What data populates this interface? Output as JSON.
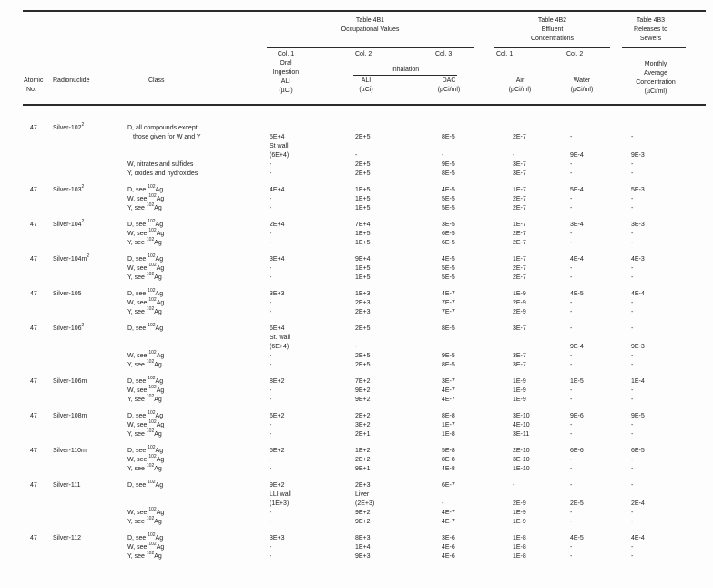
{
  "header": {
    "atomic_no": [
      "Atomic",
      "No."
    ],
    "radionuclide": "Radionuclide",
    "class_label": "Class",
    "t4b1": {
      "title": [
        "Table 4B1",
        "Occupational Values"
      ],
      "col1": [
        "Col. 1",
        "Oral",
        "Ingestion",
        "ALI",
        "(µCi)"
      ],
      "col2": "Col. 2",
      "col3": "Col. 3",
      "inhalation": "Inhalation",
      "ali": [
        "ALI",
        "(µCi)"
      ],
      "dac": [
        "DAC",
        "(µCi/ml)"
      ]
    },
    "t4b2": {
      "title": [
        "Table 4B2",
        "Effluent",
        "Concentrations"
      ],
      "col1": "Col. 1",
      "col2": "Col. 2",
      "air": [
        "Air",
        "(µCi/ml)"
      ],
      "water": [
        "Water",
        "(µCi/ml)"
      ]
    },
    "t4b3": {
      "title": [
        "Table 4B3",
        "Releases to",
        "Sewers"
      ],
      "sub": [
        "Monthly",
        "Average",
        "Concentration",
        "(µCi/ml)"
      ]
    }
  },
  "nuclides": [
    {
      "atomic_no": "47",
      "name": "Silver-102",
      "footnote": "2",
      "rows": [
        {
          "class": "D, all compounds except"
        },
        {
          "class": "those given for W and Y",
          "indent": true,
          "oral": "5E+4",
          "inh": "2E+5",
          "dac": "8E-5",
          "air": "2E-7",
          "water": "-",
          "sewer": "-"
        },
        {
          "oral": "St wall"
        },
        {
          "oral": "(6E+4)",
          "inh": "-",
          "dac": "-",
          "air": "-",
          "water": "9E-4",
          "sewer": "9E-3"
        },
        {
          "class": "W, nitrates and sulfides",
          "oral": "-",
          "inh": "2E+5",
          "dac": "9E-5",
          "air": "3E-7",
          "water": "-",
          "sewer": "-"
        },
        {
          "class": "Y, oxides and hydroxides",
          "oral": "-",
          "inh": "2E+5",
          "dac": "8E-5",
          "air": "3E-7",
          "water": "-",
          "sewer": "-"
        }
      ]
    },
    {
      "atomic_no": "47",
      "name": "Silver-103",
      "footnote": "2",
      "rows": [
        {
          "class": "D, see ^102^Ag",
          "oral": "4E+4",
          "inh": "1E+5",
          "dac": "4E-5",
          "air": "1E-7",
          "water": "5E-4",
          "sewer": "5E-3"
        },
        {
          "class": "W, see ^102^Ag",
          "oral": "-",
          "inh": "1E+5",
          "dac": "5E-5",
          "air": "2E-7",
          "water": "-",
          "sewer": "-"
        },
        {
          "class": "Y, see ^102^Ag",
          "oral": "-",
          "inh": "1E+5",
          "dac": "5E-5",
          "air": "2E-7",
          "water": "-",
          "sewer": "-"
        }
      ]
    },
    {
      "atomic_no": "47",
      "name": "Silver-104",
      "footnote": "2",
      "rows": [
        {
          "class": "D, see ^102^Ag",
          "oral": "2E+4",
          "inh": "7E+4",
          "dac": "3E-5",
          "air": "1E-7",
          "water": "3E-4",
          "sewer": "3E-3"
        },
        {
          "class": "W, see ^102^Ag",
          "oral": "-",
          "inh": "1E+5",
          "dac": "6E-5",
          "air": "2E-7",
          "water": "-",
          "sewer": "-"
        },
        {
          "class": "Y, see ^102^Ag",
          "oral": "-",
          "inh": "1E+5",
          "dac": "6E-5",
          "air": "2E-7",
          "water": "-",
          "sewer": "-"
        }
      ]
    },
    {
      "atomic_no": "47",
      "name": "Silver-104m",
      "footnote": "2",
      "rows": [
        {
          "class": "D, see ^102^Ag",
          "oral": "3E+4",
          "inh": "9E+4",
          "dac": "4E-5",
          "air": "1E-7",
          "water": "4E-4",
          "sewer": "4E-3"
        },
        {
          "class": "W, see ^102^Ag",
          "oral": "-",
          "inh": "1E+5",
          "dac": "5E-5",
          "air": "2E-7",
          "water": "-",
          "sewer": "-"
        },
        {
          "class": "Y, see ^102^Ag",
          "oral": "-",
          "inh": "1E+5",
          "dac": "5E-5",
          "air": "2E-7",
          "water": "-",
          "sewer": "-"
        }
      ]
    },
    {
      "atomic_no": "47",
      "name": "Silver-105",
      "footnote": "",
      "rows": [
        {
          "class": "D, see ^102^Ag",
          "oral": "3E+3",
          "inh": "1E+3",
          "dac": "4E-7",
          "air": "1E-9",
          "water": "4E-5",
          "sewer": "4E-4"
        },
        {
          "class": "W, see ^102^Ag",
          "oral": "-",
          "inh": "2E+3",
          "dac": "7E-7",
          "air": "2E-9",
          "water": "-",
          "sewer": "-"
        },
        {
          "class": "Y, see ^102^Ag",
          "oral": "-",
          "inh": "2E+3",
          "dac": "7E-7",
          "air": "2E-9",
          "water": "-",
          "sewer": "-"
        }
      ]
    },
    {
      "atomic_no": "47",
      "name": "Silver-106",
      "footnote": "2",
      "rows": [
        {
          "class": "D, see ^102^Ag",
          "oral": "6E+4",
          "inh": "2E+5",
          "dac": "8E-5",
          "air": "3E-7",
          "water": "-",
          "sewer": "-"
        },
        {
          "oral": "St. wall"
        },
        {
          "oral": "(6E+4)",
          "inh": "-",
          "dac": "-",
          "air": "-",
          "water": "9E-4",
          "sewer": "9E-3"
        },
        {
          "class": "W, see ^102^Ag",
          "oral": "-",
          "inh": "2E+5",
          "dac": "9E-5",
          "air": "3E-7",
          "water": "-",
          "sewer": "-"
        },
        {
          "class": "Y, see ^102^Ag",
          "oral": "-",
          "inh": "2E+5",
          "dac": "8E-5",
          "air": "3E-7",
          "water": "-",
          "sewer": "-"
        }
      ]
    },
    {
      "atomic_no": "47",
      "name": "Silver-106m",
      "footnote": "",
      "rows": [
        {
          "class": "D, see ^102^Ag",
          "oral": "8E+2",
          "inh": "7E+2",
          "dac": "3E-7",
          "air": "1E-9",
          "water": "1E-5",
          "sewer": "1E-4"
        },
        {
          "class": "W, see ^102^Ag",
          "oral": "-",
          "inh": "9E+2",
          "dac": "4E-7",
          "air": "1E-9",
          "water": "-",
          "sewer": "-"
        },
        {
          "class": "Y, see ^102^Ag",
          "oral": "-",
          "inh": "9E+2",
          "dac": "4E-7",
          "air": "1E-9",
          "water": "-",
          "sewer": "-"
        }
      ]
    },
    {
      "atomic_no": "47",
      "name": "Silver-108m",
      "footnote": "",
      "rows": [
        {
          "class": "D, see ^102^Ag",
          "oral": "6E+2",
          "inh": "2E+2",
          "dac": "8E-8",
          "air": "3E-10",
          "water": "9E-6",
          "sewer": "9E-5"
        },
        {
          "class": "W, see ^102^Ag",
          "oral": "-",
          "inh": "3E+2",
          "dac": "1E-7",
          "air": "4E-10",
          "water": "-",
          "sewer": "-"
        },
        {
          "class": "Y, see ^102^Ag",
          "oral": "-",
          "inh": "2E+1",
          "dac": "1E-8",
          "air": "3E-11",
          "water": "-",
          "sewer": "-"
        }
      ]
    },
    {
      "atomic_no": "47",
      "name": "Silver-110m",
      "footnote": "",
      "rows": [
        {
          "class": "D, see ^102^Ag",
          "oral": "5E+2",
          "inh": "1E+2",
          "dac": "5E-8",
          "air": "2E-10",
          "water": "6E-6",
          "sewer": "6E-5"
        },
        {
          "class": "W, see ^102^Ag",
          "oral": "-",
          "inh": "2E+2",
          "dac": "8E-8",
          "air": "3E-10",
          "water": "-",
          "sewer": "-"
        },
        {
          "class": "Y, see ^102^Ag",
          "oral": "-",
          "inh": "9E+1",
          "dac": "4E-8",
          "air": "1E-10",
          "water": "-",
          "sewer": "-"
        }
      ]
    },
    {
      "atomic_no": "47",
      "name": "Silver-111",
      "footnote": "",
      "rows": [
        {
          "class": "D, see ^102^Ag",
          "oral": "9E+2",
          "inh": "2E+3",
          "dac": "6E-7",
          "air": "-",
          "water": "-",
          "sewer": "-"
        },
        {
          "oral": "LLI wall",
          "inh": "Liver"
        },
        {
          "oral": "(1E+3)",
          "inh": "(2E+3)",
          "dac": "-",
          "air": "2E-9",
          "water": "2E-5",
          "sewer": "2E-4"
        },
        {
          "class": "W, see ^102^Ag",
          "oral": "-",
          "inh": "9E+2",
          "dac": "4E-7",
          "air": "1E-9",
          "water": "-",
          "sewer": "-"
        },
        {
          "class": "Y, see ^102^Ag",
          "oral": "-",
          "inh": "9E+2",
          "dac": "4E-7",
          "air": "1E-9",
          "water": "-",
          "sewer": "-"
        }
      ]
    },
    {
      "atomic_no": "47",
      "name": "Silver-112",
      "footnote": "",
      "rows": [
        {
          "class": "D, see ^102^Ag",
          "oral": "3E+3",
          "inh": "8E+3",
          "dac": "3E-6",
          "air": "1E-8",
          "water": "4E-5",
          "sewer": "4E-4"
        },
        {
          "class": "W, see ^102^Ag",
          "oral": "-",
          "inh": "1E+4",
          "dac": "4E-6",
          "air": "1E-8",
          "water": "-",
          "sewer": "-"
        },
        {
          "class": "Y, see ^102^Ag",
          "oral": "-",
          "inh": "9E+3",
          "dac": "4E-6",
          "air": "1E-8",
          "water": "-",
          "sewer": "-"
        }
      ]
    }
  ]
}
